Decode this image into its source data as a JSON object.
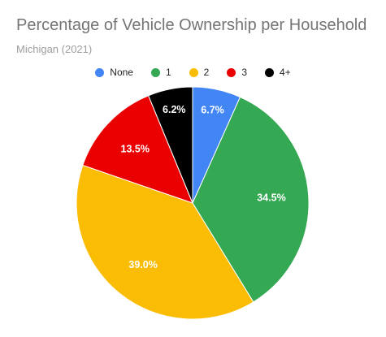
{
  "chart_data": {
    "type": "pie",
    "title": "Percentage of Vehicle Ownership per Household",
    "subtitle": "Michigan (2021)",
    "legend_position": "top",
    "categories": [
      "None",
      "1",
      "2",
      "3",
      "4+"
    ],
    "values": [
      6.7,
      34.5,
      39.0,
      13.5,
      6.2
    ],
    "value_labels": [
      "6.7%",
      "34.5%",
      "39.0%",
      "13.5%",
      "6.2%"
    ],
    "colors": [
      "#4285f4",
      "#34a853",
      "#fbbc04",
      "#ea0000",
      "#000000"
    ]
  }
}
